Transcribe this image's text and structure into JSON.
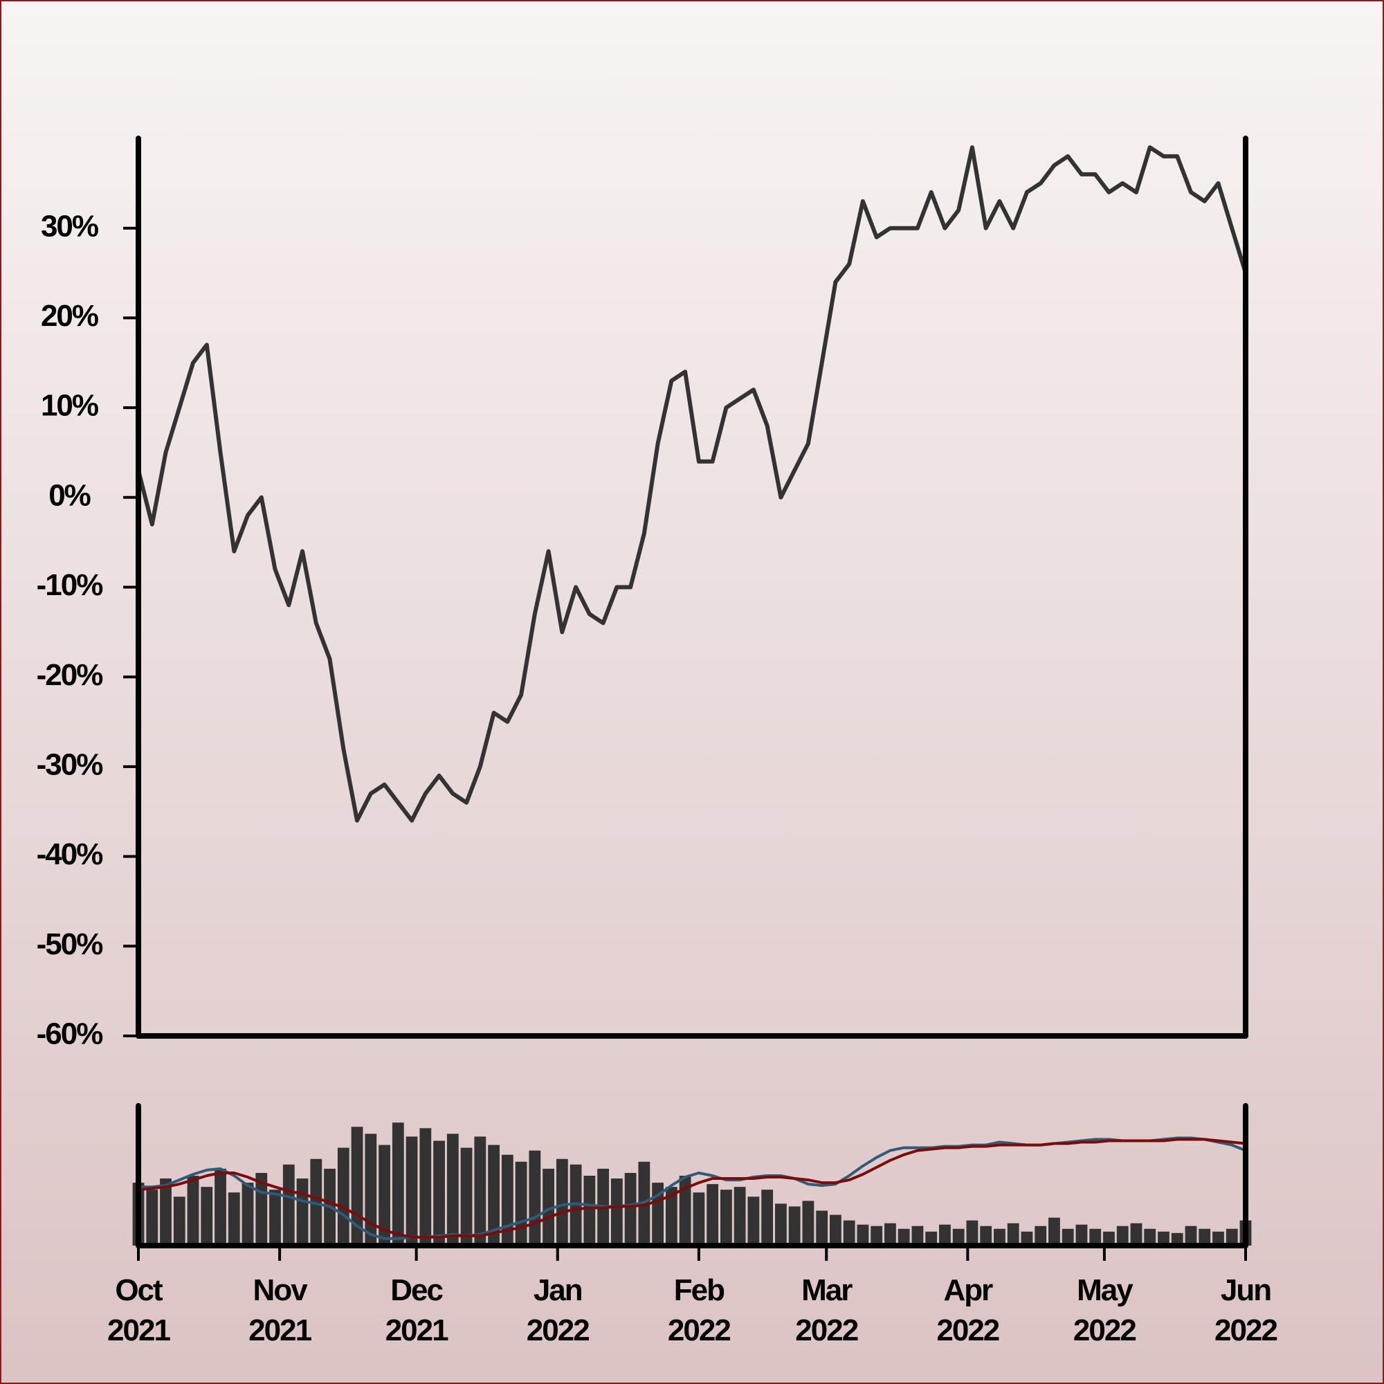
{
  "chart_data": [
    {
      "type": "line",
      "x": [
        0,
        3,
        6,
        9,
        12,
        15,
        18,
        21,
        24,
        27,
        30,
        33,
        36,
        39,
        42,
        45,
        48,
        51,
        54,
        57,
        60,
        63,
        66,
        69,
        72,
        75,
        78,
        81,
        84,
        87,
        90,
        93,
        96,
        99,
        102,
        105,
        108,
        111,
        114,
        117,
        120,
        123,
        126,
        129,
        132,
        135,
        138,
        141,
        144,
        147,
        150,
        153,
        156,
        159,
        162,
        165,
        168,
        171,
        174,
        177,
        180,
        183,
        186,
        189,
        192,
        195,
        198,
        201,
        204,
        207,
        210,
        213,
        216,
        219,
        222,
        225,
        228,
        231,
        234,
        237,
        240,
        243
      ],
      "values": [
        3,
        -3,
        5,
        10,
        15,
        17,
        5,
        -6,
        -2,
        0,
        -8,
        -12,
        -6,
        -14,
        -18,
        -28,
        -36,
        -33,
        -32,
        -34,
        -36,
        -33,
        -31,
        -33,
        -34,
        -30,
        -24,
        -25,
        -22,
        -13,
        -6,
        -15,
        -10,
        -13,
        -14,
        -10,
        -10,
        -4,
        6,
        13,
        14,
        4,
        4,
        10,
        11,
        12,
        8,
        0,
        3,
        6,
        15,
        24,
        26,
        33,
        29,
        30,
        30,
        30,
        34,
        30,
        32,
        39,
        30,
        33,
        30,
        34,
        35,
        37,
        38,
        36,
        36,
        34,
        35,
        34,
        39,
        38,
        38,
        34,
        33,
        35,
        30,
        25
      ],
      "color": "#333333",
      "xlim": [
        0,
        243
      ],
      "ylim": [
        -60,
        40
      ],
      "yticks": [
        {
          "value": -60,
          "label": "-60%"
        },
        {
          "value": -50,
          "label": "-50%"
        },
        {
          "value": -40,
          "label": "-40%"
        },
        {
          "value": -30,
          "label": "-30%"
        },
        {
          "value": -20,
          "label": "-20%"
        },
        {
          "value": -10,
          "label": "-10%"
        },
        {
          "value": 0,
          "label": "0%"
        },
        {
          "value": 10,
          "label": "10%"
        },
        {
          "value": 20,
          "label": "20%"
        },
        {
          "value": 30,
          "label": "30%"
        }
      ]
    },
    {
      "type": "bar",
      "x": [
        0,
        3,
        6,
        9,
        12,
        15,
        18,
        21,
        24,
        27,
        30,
        33,
        36,
        39,
        42,
        45,
        48,
        51,
        54,
        57,
        60,
        63,
        66,
        69,
        72,
        75,
        78,
        81,
        84,
        87,
        90,
        93,
        96,
        99,
        102,
        105,
        108,
        111,
        114,
        117,
        120,
        123,
        126,
        129,
        132,
        135,
        138,
        141,
        144,
        147,
        150,
        153,
        156,
        159,
        162,
        165,
        168,
        171,
        174,
        177,
        180,
        183,
        186,
        189,
        192,
        195,
        198,
        201,
        204,
        207,
        210,
        213,
        216,
        219,
        222,
        225,
        228,
        231,
        234,
        237,
        240,
        243
      ],
      "values": [
        45,
        40,
        48,
        35,
        50,
        42,
        55,
        38,
        45,
        52,
        40,
        58,
        48,
        62,
        55,
        70,
        85,
        80,
        72,
        88,
        78,
        84,
        75,
        80,
        70,
        78,
        72,
        65,
        60,
        68,
        55,
        62,
        58,
        50,
        55,
        48,
        52,
        60,
        45,
        42,
        50,
        38,
        44,
        40,
        42,
        35,
        40,
        30,
        28,
        32,
        25,
        22,
        18,
        15,
        14,
        16,
        12,
        14,
        10,
        15,
        12,
        18,
        14,
        12,
        16,
        10,
        14,
        20,
        12,
        15,
        12,
        10,
        14,
        16,
        12,
        10,
        9,
        14,
        12,
        10,
        12,
        18
      ],
      "color": "#333333",
      "xlim": [
        0,
        243
      ],
      "ylim": [
        0,
        100
      ],
      "y2lim": [
        -40,
        60
      ],
      "xticks": [
        {
          "value": 0,
          "label": "Oct 2021"
        },
        {
          "value": 31,
          "label": "Nov 2021"
        },
        {
          "value": 61,
          "label": "Dec 2021"
        },
        {
          "value": 92,
          "label": "Jan 2022"
        },
        {
          "value": 123,
          "label": "Feb 2022"
        },
        {
          "value": 151,
          "label": "Mar 2022"
        },
        {
          "value": 182,
          "label": "Apr 2022"
        },
        {
          "value": 212,
          "label": "May 2022"
        },
        {
          "value": 243,
          "label": "Jun 2022"
        }
      ],
      "series": [
        {
          "color": "#2f5b78",
          "axis": "y2",
          "values": [
            2,
            2,
            3,
            7,
            11,
            14,
            15,
            10,
            3,
            -2,
            -3,
            -5,
            -8,
            -10,
            -12,
            -18,
            -26,
            -32,
            -35,
            -35,
            -34,
            -34,
            -33,
            -32,
            -33,
            -32,
            -29,
            -26,
            -23,
            -20,
            -14,
            -11,
            -10,
            -11,
            -12,
            -12,
            -11,
            -9,
            -4,
            3,
            9,
            12,
            10,
            7,
            7,
            9,
            10,
            10,
            8,
            4,
            3,
            4,
            10,
            17,
            23,
            28,
            30,
            30,
            30,
            31,
            31,
            32,
            32,
            34,
            33,
            32,
            32,
            33,
            34,
            35,
            36,
            36,
            35,
            35,
            35,
            36,
            37,
            37,
            36,
            34,
            32,
            28
          ]
        },
        {
          "color": "#7a0c0c",
          "axis": "y2",
          "values": [
            0,
            1,
            2,
            4,
            7,
            10,
            12,
            12,
            9,
            5,
            2,
            -1,
            -3,
            -6,
            -9,
            -13,
            -18,
            -24,
            -29,
            -32,
            -34,
            -34,
            -34,
            -33,
            -33,
            -33,
            -31,
            -29,
            -27,
            -24,
            -20,
            -16,
            -14,
            -13,
            -13,
            -12,
            -12,
            -11,
            -8,
            -4,
            1,
            5,
            8,
            8,
            8,
            8,
            9,
            9,
            8,
            7,
            5,
            5,
            7,
            11,
            16,
            21,
            25,
            28,
            29,
            30,
            30,
            31,
            31,
            32,
            32,
            32,
            32,
            33,
            33,
            34,
            34,
            35,
            35,
            35,
            35,
            35,
            36,
            36,
            36,
            35,
            34,
            33
          ]
        }
      ]
    }
  ]
}
